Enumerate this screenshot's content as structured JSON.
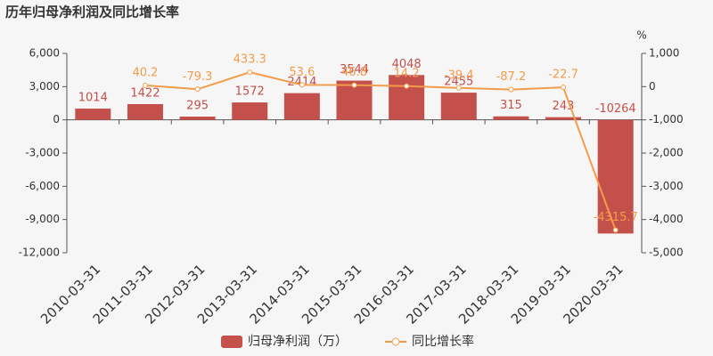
{
  "chart_data": {
    "type": "bar_line",
    "title": "历年归母净利润及同比增长率",
    "y2_unit": "%",
    "categories": [
      "2010-03-31",
      "2011-03-31",
      "2012-03-31",
      "2013-03-31",
      "2014-03-31",
      "2015-03-31",
      "2016-03-31",
      "2017-03-31",
      "2018-03-31",
      "2019-03-31",
      "2020-03-31"
    ],
    "series": [
      {
        "name": "归母净利润（万）",
        "type": "bar",
        "color": "#c4504b",
        "values": [
          1014,
          1422,
          295,
          1572,
          2414,
          3544,
          4048,
          2455,
          315,
          243,
          -10264
        ]
      },
      {
        "name": "同比增长率",
        "type": "line",
        "axis": "y2",
        "color": "#f39c4b",
        "values": [
          null,
          40.2,
          -79.3,
          433.3,
          53.6,
          46.8,
          14.2,
          -39.4,
          -87.2,
          -22.7,
          -4315.7
        ]
      }
    ],
    "ylim": [
      -12000,
      6000
    ],
    "yticks": [
      {
        "value": -12000,
        "label": "-12,000"
      },
      {
        "value": -9000,
        "label": "-9,000"
      },
      {
        "value": -6000,
        "label": "-6,000"
      },
      {
        "value": -3000,
        "label": "-3,000"
      },
      0,
      {
        "value": 3000,
        "label": "3,000"
      },
      {
        "value": 6000,
        "label": "6,000"
      }
    ],
    "y2lim": [
      -5000,
      1000
    ],
    "y2ticks": [
      {
        "value": -5000,
        "label": "-5,000"
      },
      {
        "value": -4000,
        "label": "-4,000"
      },
      {
        "value": -3000,
        "label": "-3,000"
      },
      {
        "value": -2000,
        "label": "-2,000"
      },
      {
        "value": -1000,
        "label": "-1,000"
      },
      0,
      {
        "value": 1000,
        "label": "1,000"
      }
    ],
    "grid": false,
    "legend": "bottom"
  }
}
